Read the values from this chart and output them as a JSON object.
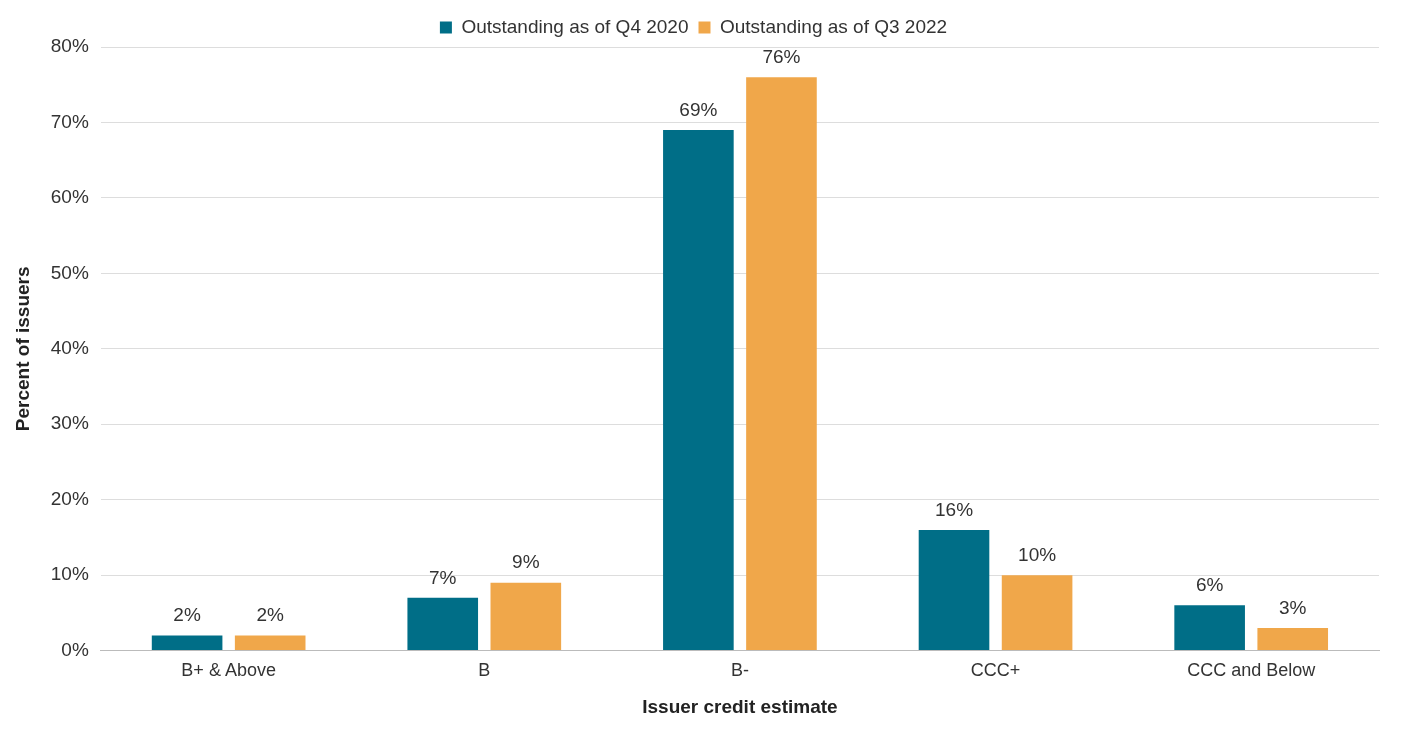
{
  "chart_data": {
    "type": "bar",
    "xlabel": "Issuer credit estimate",
    "ylabel": "Percent of issuers",
    "categories": [
      "B+ & Above",
      "B",
      "B-",
      "CCC+",
      "CCC and Below"
    ],
    "series": [
      {
        "name": "Outstanding as of Q4 2020",
        "color": "#006e87",
        "values": [
          2,
          7,
          69,
          16,
          6
        ],
        "value_labels": [
          "2%",
          "7%",
          "69%",
          "16%",
          "6%"
        ]
      },
      {
        "name": "Outstanding as of Q3 2022",
        "color": "#f0a74a",
        "values": [
          2,
          9,
          76,
          10,
          3
        ],
        "value_labels": [
          "2%",
          "9%",
          "76%",
          "10%",
          "3%"
        ]
      }
    ],
    "ylim": [
      0,
      80
    ],
    "yticks": [
      {
        "value": 0,
        "label": "0%"
      },
      {
        "value": 10,
        "label": "10%"
      },
      {
        "value": 20,
        "label": "20%"
      },
      {
        "value": 30,
        "label": "30%"
      },
      {
        "value": 40,
        "label": "40%"
      },
      {
        "value": 50,
        "label": "50%"
      },
      {
        "value": 60,
        "label": "60%"
      },
      {
        "value": 70,
        "label": "70%"
      },
      {
        "value": 80,
        "label": "80%"
      }
    ],
    "grid": "y",
    "legend": "top"
  }
}
